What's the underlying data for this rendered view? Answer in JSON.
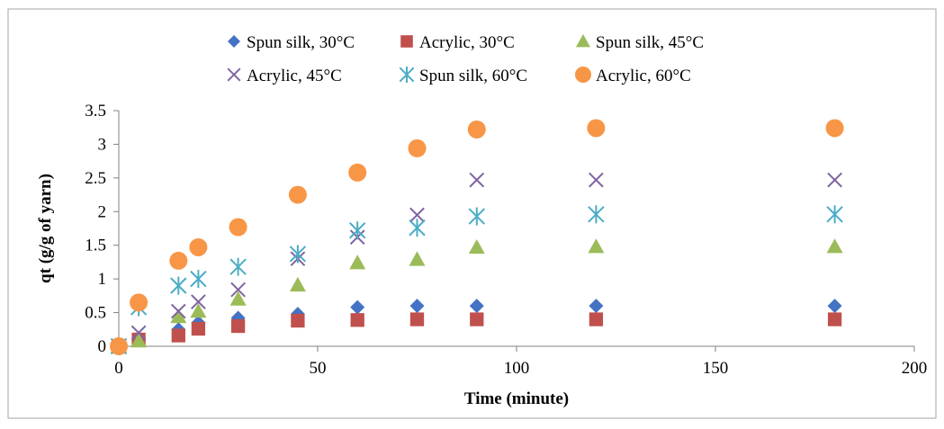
{
  "chart_data": {
    "type": "scatter",
    "xlabel": "Time (minute)",
    "ylabel": "qt (g/g of yarn)",
    "xlim": [
      0,
      200
    ],
    "ylim": [
      0,
      3.5
    ],
    "xticks": [
      0,
      50,
      100,
      150,
      200
    ],
    "yticks": [
      0,
      0.5,
      1,
      1.5,
      2,
      2.5,
      3,
      3.5
    ],
    "x_tick_labels": [
      "0",
      "50",
      "100",
      "150",
      "200"
    ],
    "y_tick_labels": [
      "0",
      "0.5",
      "1",
      "1.5",
      "2",
      "2.5",
      "3",
      "3.5"
    ],
    "grid": false,
    "legend_position": "top",
    "x": [
      0,
      5,
      15,
      20,
      30,
      45,
      60,
      75,
      90,
      120,
      180
    ],
    "series": [
      {
        "name": "Spun silk, 30°C",
        "marker": "diamond",
        "color": "#4472C4",
        "values": [
          0,
          0.12,
          0.25,
          0.35,
          0.42,
          0.48,
          0.58,
          0.6,
          0.6,
          0.6,
          0.6
        ]
      },
      {
        "name": "Acrylic, 30°C",
        "marker": "square",
        "color": "#C0504D",
        "values": [
          0,
          0.1,
          0.16,
          0.26,
          0.3,
          0.38,
          0.39,
          0.4,
          0.4,
          0.4,
          0.4
        ]
      },
      {
        "name": "Spun silk, 45°C",
        "marker": "triangle",
        "color": "#9BBB59",
        "values": [
          0,
          0.08,
          0.44,
          0.52,
          0.7,
          0.91,
          1.24,
          1.29,
          1.47,
          1.48,
          1.48
        ]
      },
      {
        "name": "Acrylic, 45°C",
        "marker": "x",
        "color": "#8064A2",
        "values": [
          0,
          0.2,
          0.52,
          0.66,
          0.84,
          1.3,
          1.62,
          1.95,
          2.47,
          2.47,
          2.47
        ]
      },
      {
        "name": "Spun silk, 60°C",
        "marker": "star",
        "color": "#4BACC6",
        "values": [
          0,
          0.58,
          0.9,
          1.0,
          1.18,
          1.37,
          1.72,
          1.76,
          1.93,
          1.96,
          1.96
        ]
      },
      {
        "name": "Acrylic, 60°C",
        "marker": "circle",
        "color": "#F79646",
        "values": [
          0,
          0.65,
          1.27,
          1.47,
          1.77,
          2.25,
          2.58,
          2.94,
          3.22,
          3.24,
          3.24
        ]
      }
    ]
  }
}
